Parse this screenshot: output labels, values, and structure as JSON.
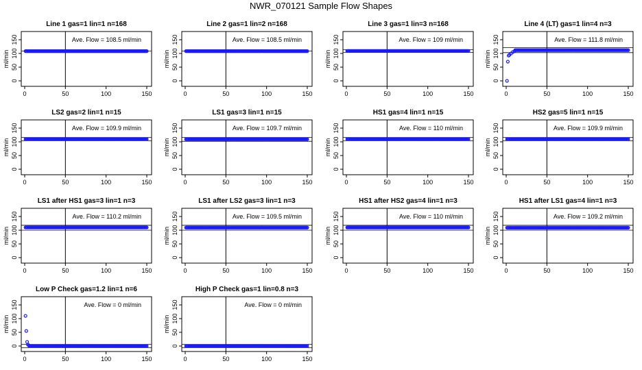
{
  "figure": {
    "title": "NWR_070121  Sample Flow Shapes"
  },
  "chart_data": [
    {
      "type": "scatter",
      "title": "Line 1 gas=1 lin=1 n=168",
      "ylabel": "ml/min",
      "xlim": [
        0,
        150
      ],
      "ylim": [
        -20,
        180
      ],
      "x_ticks": [
        0,
        50,
        100,
        150
      ],
      "y_ticks": [
        0,
        50,
        100,
        150
      ],
      "annotation": "Ave. Flow =  108.5  ml/min",
      "ref_lines_y": [
        108.5
      ],
      "vline_x": 50,
      "series": [
        {
          "shape": "flat",
          "value": 108.5
        }
      ]
    },
    {
      "type": "scatter",
      "title": "Line 2 gas=1 lin=2 n=168",
      "ylabel": "ml/min",
      "xlim": [
        0,
        150
      ],
      "ylim": [
        -20,
        180
      ],
      "x_ticks": [
        0,
        50,
        100,
        150
      ],
      "y_ticks": [
        0,
        50,
        100,
        150
      ],
      "annotation": "Ave. Flow =  108.5  ml/min",
      "ref_lines_y": [
        108.5
      ],
      "vline_x": 50,
      "series": [
        {
          "shape": "flat",
          "value": 108.5
        }
      ]
    },
    {
      "type": "scatter",
      "title": "Line 3 gas=1 lin=3 n=168",
      "ylabel": "ml/min",
      "xlim": [
        0,
        150
      ],
      "ylim": [
        -20,
        180
      ],
      "x_ticks": [
        0,
        50,
        100,
        150
      ],
      "y_ticks": [
        0,
        50,
        100,
        150
      ],
      "annotation": "Ave. Flow =  109  ml/min",
      "ref_lines_y": [
        104,
        114
      ],
      "vline_x": 50,
      "series": [
        {
          "shape": "flat",
          "value": 109
        }
      ]
    },
    {
      "type": "scatter",
      "title": "Line 4 (LT) gas=1 lin=4 n=3",
      "ylabel": "ml/min",
      "xlim": [
        0,
        150
      ],
      "ylim": [
        -20,
        180
      ],
      "x_ticks": [
        0,
        50,
        100,
        150
      ],
      "y_ticks": [
        0,
        50,
        100,
        150
      ],
      "annotation": "Ave. Flow =  111.8  ml/min",
      "ref_lines_y": [
        103,
        121
      ],
      "vline_x": 50,
      "series": [
        {
          "shape": "ramp",
          "value": 112,
          "start": [
            [
              1,
              0
            ],
            [
              2,
              70
            ],
            [
              3,
              92
            ],
            [
              4,
              95
            ],
            [
              6,
              100
            ],
            [
              8,
              105
            ],
            [
              10,
              108
            ]
          ]
        }
      ]
    },
    {
      "type": "scatter",
      "title": "LS2 gas=2 lin=1 n=15",
      "ylabel": "ml/min",
      "xlim": [
        0,
        150
      ],
      "ylim": [
        -20,
        180
      ],
      "x_ticks": [
        0,
        50,
        100,
        150
      ],
      "y_ticks": [
        0,
        50,
        100,
        150
      ],
      "annotation": "Ave. Flow =  109.9  ml/min",
      "ref_lines_y": [
        104,
        116
      ],
      "vline_x": 50,
      "series": [
        {
          "shape": "flat",
          "value": 110
        }
      ]
    },
    {
      "type": "scatter",
      "title": "LS1 gas=3 lin=1 n=15",
      "ylabel": "ml/min",
      "xlim": [
        0,
        150
      ],
      "ylim": [
        -20,
        180
      ],
      "x_ticks": [
        0,
        50,
        100,
        150
      ],
      "y_ticks": [
        0,
        50,
        100,
        150
      ],
      "annotation": "Ave. Flow =  109.7  ml/min",
      "ref_lines_y": [
        102,
        116
      ],
      "vline_x": 50,
      "series": [
        {
          "shape": "flat",
          "value": 109.7
        }
      ]
    },
    {
      "type": "scatter",
      "title": "HS1 gas=4 lin=1 n=15",
      "ylabel": "ml/min",
      "xlim": [
        0,
        150
      ],
      "ylim": [
        -20,
        180
      ],
      "x_ticks": [
        0,
        50,
        100,
        150
      ],
      "y_ticks": [
        0,
        50,
        100,
        150
      ],
      "annotation": "Ave. Flow =  110  ml/min",
      "ref_lines_y": [
        104,
        116
      ],
      "vline_x": 50,
      "series": [
        {
          "shape": "flat",
          "value": 110
        }
      ]
    },
    {
      "type": "scatter",
      "title": "HS2 gas=5 lin=1 n=15",
      "ylabel": "ml/min",
      "xlim": [
        0,
        150
      ],
      "ylim": [
        -20,
        180
      ],
      "x_ticks": [
        0,
        50,
        100,
        150
      ],
      "y_ticks": [
        0,
        50,
        100,
        150
      ],
      "annotation": "Ave. Flow =  109.9  ml/min",
      "ref_lines_y": [
        104,
        116
      ],
      "vline_x": 50,
      "series": [
        {
          "shape": "flat",
          "value": 110
        }
      ]
    },
    {
      "type": "scatter",
      "title": "LS1 after HS1 gas=3 lin=1 n=3",
      "ylabel": "ml/min",
      "xlim": [
        0,
        150
      ],
      "ylim": [
        -20,
        180
      ],
      "x_ticks": [
        0,
        50,
        100,
        150
      ],
      "y_ticks": [
        0,
        50,
        100,
        150
      ],
      "annotation": "Ave. Flow =  110.2  ml/min",
      "ref_lines_y": [
        100,
        118
      ],
      "vline_x": 50,
      "series": [
        {
          "shape": "flat",
          "value": 110.2
        }
      ]
    },
    {
      "type": "scatter",
      "title": "LS1 after LS2 gas=3 lin=1 n=3",
      "ylabel": "ml/min",
      "xlim": [
        0,
        150
      ],
      "ylim": [
        -20,
        180
      ],
      "x_ticks": [
        0,
        50,
        100,
        150
      ],
      "y_ticks": [
        0,
        50,
        100,
        150
      ],
      "annotation": "Ave. Flow =  109.5  ml/min",
      "ref_lines_y": [
        100,
        118
      ],
      "vline_x": 50,
      "series": [
        {
          "shape": "flat",
          "value": 109.5
        }
      ]
    },
    {
      "type": "scatter",
      "title": "HS1 after HS2 gas=4 lin=1 n=3",
      "ylabel": "ml/min",
      "xlim": [
        0,
        150
      ],
      "ylim": [
        -20,
        180
      ],
      "x_ticks": [
        0,
        50,
        100,
        150
      ],
      "y_ticks": [
        0,
        50,
        100,
        150
      ],
      "annotation": "Ave. Flow =  110  ml/min",
      "ref_lines_y": [
        100,
        118
      ],
      "vline_x": 50,
      "series": [
        {
          "shape": "flat",
          "value": 110
        }
      ]
    },
    {
      "type": "scatter",
      "title": "HS1 after LS1 gas=4 lin=1 n=3",
      "ylabel": "ml/min",
      "xlim": [
        0,
        150
      ],
      "ylim": [
        -20,
        180
      ],
      "x_ticks": [
        0,
        50,
        100,
        150
      ],
      "y_ticks": [
        0,
        50,
        100,
        150
      ],
      "annotation": "Ave. Flow =  109.2  ml/min",
      "ref_lines_y": [
        100,
        118
      ],
      "vline_x": 50,
      "series": [
        {
          "shape": "flat",
          "value": 109.2
        }
      ]
    },
    {
      "type": "scatter",
      "title": "Low P Check gas=1.2 lin=1 n=6",
      "ylabel": "ml/min",
      "xlim": [
        0,
        150
      ],
      "ylim": [
        -20,
        180
      ],
      "x_ticks": [
        0,
        50,
        100,
        150
      ],
      "y_ticks": [
        0,
        50,
        100,
        150
      ],
      "annotation": "Ave. Flow =  0  ml/min",
      "ref_lines_y": [
        -6,
        6
      ],
      "vline_x": 50,
      "series": [
        {
          "shape": "decay",
          "value": 0,
          "start": [
            [
              1,
              110
            ],
            [
              2,
              55
            ],
            [
              3,
              15
            ],
            [
              4,
              5
            ],
            [
              5,
              2
            ]
          ]
        }
      ]
    },
    {
      "type": "scatter",
      "title": "High P Check gas=1 lin=0.8 n=3",
      "ylabel": "ml/min",
      "xlim": [
        0,
        150
      ],
      "ylim": [
        -20,
        180
      ],
      "x_ticks": [
        0,
        50,
        100,
        150
      ],
      "y_ticks": [
        0,
        50,
        100,
        150
      ],
      "annotation": "Ave. Flow =  0  ml/min",
      "ref_lines_y": [
        -6,
        6
      ],
      "vline_x": 50,
      "series": [
        {
          "shape": "flat",
          "value": 0
        }
      ]
    }
  ]
}
